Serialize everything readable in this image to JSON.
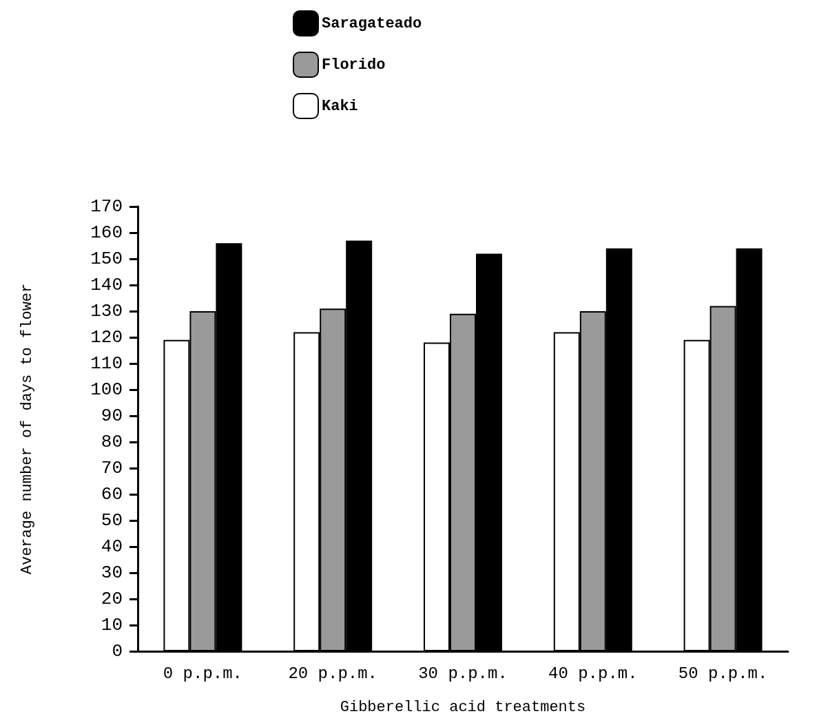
{
  "chart_data": {
    "type": "bar",
    "xlabel": "Gibberellic acid treatments",
    "ylabel": "Average number of days to flower",
    "categories": [
      "0 p.p.m.",
      "20 p.p.m.",
      "30 p.p.m.",
      "40 p.p.m.",
      "50 p.p.m."
    ],
    "series": [
      {
        "name": "Kaki",
        "color": "#ffffff",
        "values": [
          119,
          122,
          118,
          122,
          119
        ]
      },
      {
        "name": "Florido",
        "color": "#9a9a9a",
        "values": [
          130,
          131,
          129,
          130,
          132
        ]
      },
      {
        "name": "Saragateado",
        "color": "#000000",
        "values": [
          156,
          157,
          152,
          154,
          154
        ]
      }
    ],
    "ylim": [
      0,
      170
    ],
    "yticks": [
      0,
      10,
      20,
      30,
      40,
      50,
      60,
      70,
      80,
      90,
      100,
      110,
      120,
      130,
      140,
      150,
      160,
      170
    ],
    "grid": false,
    "legend": "top"
  }
}
